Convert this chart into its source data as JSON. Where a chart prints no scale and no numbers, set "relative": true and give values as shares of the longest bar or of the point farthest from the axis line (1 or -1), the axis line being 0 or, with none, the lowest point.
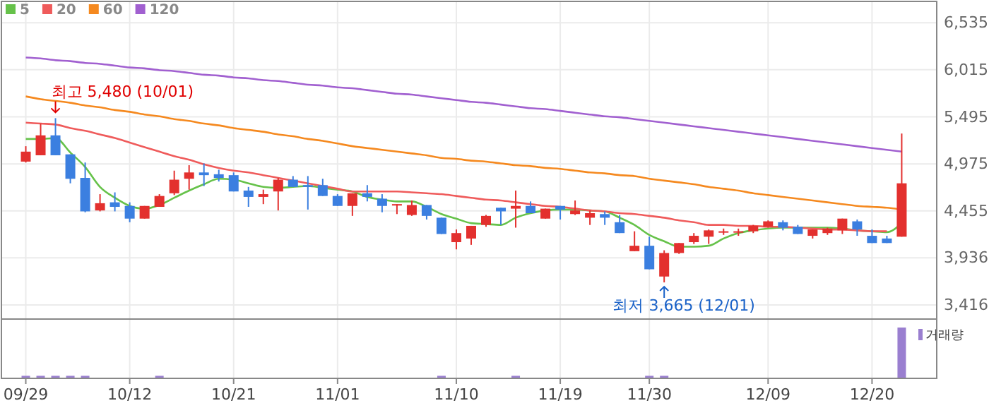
{
  "chart_data": [
    {
      "type": "candlestick",
      "categories": [
        null,
        null,
        null,
        null,
        null,
        null,
        null,
        null,
        null,
        null,
        null,
        null,
        null,
        null,
        null,
        null,
        null,
        null,
        null,
        null,
        null,
        null,
        null,
        null,
        null,
        null,
        null,
        null,
        null,
        null,
        null,
        null,
        null,
        null,
        null,
        null,
        null,
        null,
        null,
        null,
        null,
        null,
        null,
        null,
        null,
        null,
        null,
        null,
        null,
        null,
        null,
        null,
        null,
        null,
        null,
        null,
        null,
        null,
        null,
        null
      ],
      "ohlc": [
        [
          5000,
          5170,
          4990,
          5110
        ],
        [
          5070,
          5420,
          5070,
          5290
        ],
        [
          5290,
          5480,
          5070,
          5070
        ],
        [
          5080,
          5080,
          4760,
          4810
        ],
        [
          4820,
          4990,
          4440,
          4450
        ],
        [
          4460,
          4640,
          4450,
          4540
        ],
        [
          4550,
          4660,
          4450,
          4500
        ],
        [
          4510,
          4550,
          4330,
          4370
        ],
        [
          4370,
          4510,
          4370,
          4510
        ],
        [
          4500,
          4640,
          4500,
          4620
        ],
        [
          4650,
          4900,
          4630,
          4800
        ],
        [
          4810,
          4960,
          4690,
          4880
        ],
        [
          4880,
          4980,
          4730,
          4850
        ],
        [
          4860,
          4910,
          4780,
          4820
        ],
        [
          4850,
          4880,
          4670,
          4670
        ],
        [
          4680,
          4720,
          4500,
          4610
        ],
        [
          4610,
          4690,
          4530,
          4640
        ],
        [
          4670,
          4820,
          4460,
          4800
        ],
        [
          4800,
          4840,
          4720,
          4720
        ],
        [
          4740,
          4840,
          4470,
          4720
        ],
        [
          4740,
          4810,
          4620,
          4620
        ],
        [
          4620,
          4640,
          4510,
          4510
        ],
        [
          4510,
          4650,
          4400,
          4650
        ],
        [
          4650,
          4740,
          4560,
          4610
        ],
        [
          4590,
          4640,
          4440,
          4510
        ],
        [
          4520,
          4530,
          4420,
          4530
        ],
        [
          4410,
          4570,
          4400,
          4520
        ],
        [
          4520,
          4520,
          4360,
          4400
        ],
        [
          4380,
          4380,
          4200,
          4200
        ],
        [
          4110,
          4250,
          4030,
          4210
        ],
        [
          4150,
          4290,
          4080,
          4290
        ],
        [
          4300,
          4410,
          4280,
          4400
        ],
        [
          4490,
          4490,
          4300,
          4450
        ],
        [
          4480,
          4680,
          4270,
          4510
        ],
        [
          4510,
          4560,
          4430,
          4430
        ],
        [
          4370,
          4480,
          4370,
          4480
        ],
        [
          4510,
          4510,
          4360,
          4470
        ],
        [
          4420,
          4570,
          4410,
          4460
        ],
        [
          4380,
          4460,
          4300,
          4430
        ],
        [
          4420,
          4450,
          4300,
          4380
        ],
        [
          4330,
          4410,
          4210,
          4210
        ],
        [
          4010,
          4230,
          4010,
          4070
        ],
        [
          4070,
          4170,
          3810,
          3810
        ],
        [
          3730,
          4020,
          3665,
          3990
        ],
        [
          3990,
          4100,
          3980,
          4100
        ],
        [
          4110,
          4210,
          4090,
          4180
        ],
        [
          4170,
          4250,
          4090,
          4240
        ],
        [
          4230,
          4260,
          4190,
          4230
        ],
        [
          4230,
          4260,
          4180,
          4230
        ],
        [
          4230,
          4300,
          4210,
          4290
        ],
        [
          4280,
          4350,
          4270,
          4340
        ],
        [
          4330,
          4350,
          4240,
          4270
        ],
        [
          4280,
          4300,
          4200,
          4200
        ],
        [
          4180,
          4250,
          4150,
          4250
        ],
        [
          4210,
          4270,
          4190,
          4260
        ],
        [
          4240,
          4370,
          4200,
          4370
        ],
        [
          4340,
          4360,
          4180,
          4250
        ],
        [
          4180,
          4250,
          4100,
          4100
        ],
        [
          4150,
          4180,
          4100,
          4100
        ],
        [
          4170,
          5310,
          4170,
          4760
        ]
      ],
      "series": [
        {
          "name": "5",
          "type": "line",
          "color": "#66c24a",
          "values": [
            5250,
            5250,
            5260,
            5100,
            4940,
            4720,
            4600,
            4510,
            4480,
            4520,
            4600,
            4680,
            4750,
            4810,
            4800,
            4760,
            4720,
            4710,
            4720,
            4730,
            4710,
            4690,
            4670,
            4610,
            4580,
            4560,
            4560,
            4500,
            4420,
            4370,
            4320,
            4310,
            4300,
            4380,
            4430,
            4460,
            4470,
            4470,
            4460,
            4450,
            4380,
            4300,
            4190,
            4120,
            4060,
            4060,
            4070,
            4150,
            4210,
            4240,
            4260,
            4270,
            4270,
            4270,
            4270,
            4260,
            4240,
            4230,
            4220,
            4320
          ]
        },
        {
          "name": "20",
          "type": "line",
          "color": "#ef5b5b",
          "values": [
            5430,
            5420,
            5410,
            5370,
            5340,
            5300,
            5260,
            5210,
            5160,
            5110,
            5060,
            5020,
            4970,
            4930,
            4900,
            4880,
            4850,
            4820,
            4790,
            4760,
            4730,
            4700,
            4670,
            4670,
            4670,
            4670,
            4660,
            4650,
            4640,
            4620,
            4600,
            4580,
            4570,
            4550,
            4530,
            4510,
            4500,
            4480,
            4460,
            4450,
            4430,
            4420,
            4400,
            4380,
            4350,
            4330,
            4300,
            4300,
            4290,
            4290,
            4280,
            4280,
            4270,
            4260,
            4250,
            4250,
            4240,
            4230,
            4230,
            null
          ]
        },
        {
          "name": "60",
          "type": "line",
          "color": "#f5891f",
          "values": [
            5720,
            5690,
            5670,
            5650,
            5620,
            5600,
            5570,
            5550,
            5520,
            5500,
            5470,
            5450,
            5420,
            5400,
            5370,
            5350,
            5330,
            5300,
            5280,
            5250,
            5230,
            5200,
            5170,
            5150,
            5130,
            5110,
            5090,
            5070,
            5040,
            5030,
            5010,
            5000,
            4980,
            4960,
            4950,
            4930,
            4920,
            4900,
            4880,
            4870,
            4850,
            4840,
            4810,
            4790,
            4770,
            4750,
            4720,
            4700,
            4680,
            4650,
            4630,
            4610,
            4590,
            4570,
            4550,
            4530,
            4510,
            4500,
            4490,
            4470
          ]
        },
        {
          "name": "120",
          "type": "line",
          "color": "#a160d0",
          "values": [
            6150,
            6140,
            6120,
            6110,
            6090,
            6080,
            6060,
            6040,
            6030,
            6010,
            6000,
            5980,
            5960,
            5950,
            5930,
            5920,
            5900,
            5890,
            5870,
            5850,
            5840,
            5820,
            5810,
            5790,
            5770,
            5750,
            5740,
            5720,
            5700,
            5680,
            5660,
            5650,
            5630,
            5610,
            5590,
            5580,
            5560,
            5540,
            5520,
            5500,
            5490,
            5470,
            5450,
            5430,
            5410,
            5390,
            5370,
            5350,
            5330,
            5310,
            5290,
            5270,
            5250,
            5230,
            5210,
            5190,
            5170,
            5150,
            5130,
            5110
          ]
        }
      ],
      "ylim": [
        3260,
        6770
      ],
      "yticks": [
        {
          "value": 3416,
          "label": "3,416"
        },
        {
          "value": 3936,
          "label": "3,936"
        },
        {
          "value": 4455,
          "label": "4,455"
        },
        {
          "value": 4975,
          "label": "4,975"
        },
        {
          "value": 5495,
          "label": "5,495"
        },
        {
          "value": 6015,
          "label": "6,015"
        },
        {
          "value": 6535,
          "label": "6,535"
        }
      ],
      "grid": true,
      "legend": "top left",
      "tick_labels": "y",
      "annotations": [
        "최고 5,480 (10/01)",
        "최저 3,665 (12/01)"
      ]
    },
    {
      "type": "bar",
      "relative": true,
      "categories": [
        "09/29",
        null,
        null,
        null,
        null,
        null,
        null,
        "10/12",
        null,
        null,
        null,
        null,
        null,
        null,
        "10/21",
        null,
        null,
        null,
        null,
        null,
        null,
        "11/01",
        null,
        null,
        null,
        null,
        null,
        null,
        null,
        "11/10",
        null,
        null,
        null,
        null,
        null,
        null,
        "11/19",
        null,
        null,
        null,
        null,
        null,
        "11/30",
        null,
        null,
        null,
        null,
        null,
        null,
        null,
        "12/09",
        null,
        null,
        null,
        null,
        null,
        null,
        "12/20",
        null,
        null
      ],
      "series": [
        {
          "name": "거래량",
          "color": "#9a7fd0",
          "values": [
            0.05,
            0.05,
            0.05,
            0.05,
            0.05,
            null,
            null,
            null,
            null,
            0.05,
            null,
            null,
            null,
            null,
            null,
            null,
            null,
            null,
            null,
            null,
            null,
            null,
            null,
            null,
            null,
            null,
            null,
            null,
            0.05,
            null,
            null,
            null,
            null,
            0.05,
            null,
            null,
            null,
            null,
            null,
            null,
            null,
            null,
            0.05,
            0.05,
            null,
            null,
            null,
            null,
            null,
            null,
            null,
            null,
            null,
            null,
            null,
            null,
            null,
            null,
            null,
            1
          ]
        }
      ],
      "grid": "x",
      "legend": "top right",
      "tick_labels": "x"
    }
  ]
}
